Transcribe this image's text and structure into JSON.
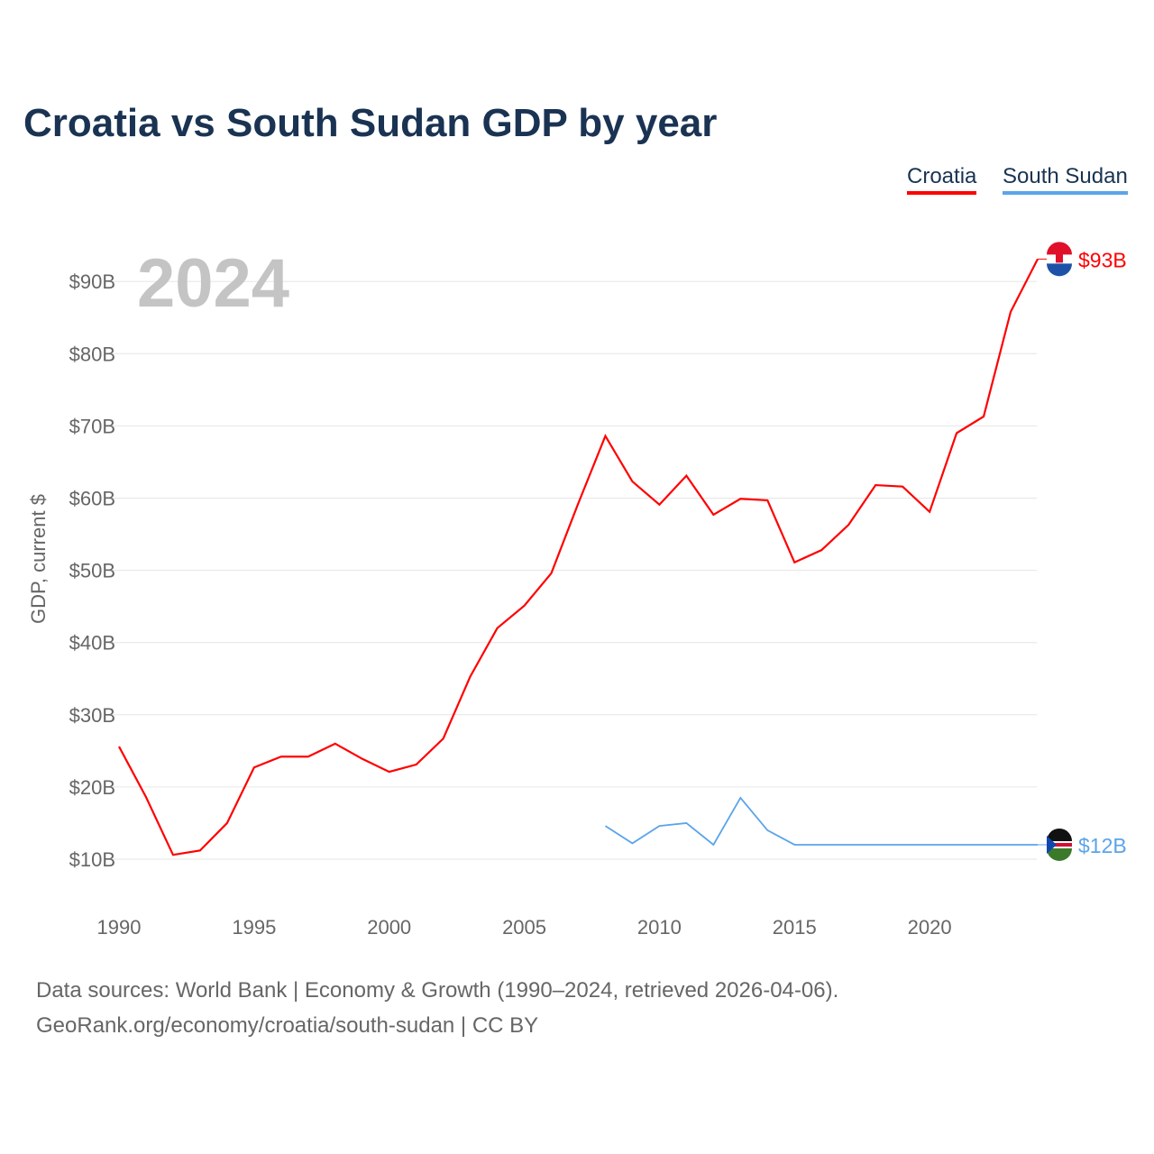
{
  "chart_data": {
    "type": "line",
    "title": "Croatia vs South Sudan GDP by year",
    "ylabel": "GDP, current $",
    "xlabel": "",
    "year_label": "2024",
    "ylim": [
      5,
      95
    ],
    "xlim": [
      1990,
      2024
    ],
    "yticks": [
      10,
      20,
      30,
      40,
      50,
      60,
      70,
      80,
      90
    ],
    "ytick_labels": [
      "$10B",
      "$20B",
      "$30B",
      "$40B",
      "$50B",
      "$60B",
      "$70B",
      "$80B",
      "$90B"
    ],
    "xticks": [
      1990,
      1995,
      2000,
      2005,
      2010,
      2015,
      2020
    ],
    "xtick_labels": [
      "1990",
      "1995",
      "2000",
      "2005",
      "2010",
      "2015",
      "2020"
    ],
    "grid": true,
    "legend_placement": "top-right",
    "series": [
      {
        "name": "Croatia",
        "color": "#ff0000",
        "end_label": "$93B",
        "flag": "croatia-flag",
        "x": [
          1990,
          1991,
          1992,
          1993,
          1994,
          1995,
          1996,
          1997,
          1998,
          1999,
          2000,
          2001,
          2002,
          2003,
          2004,
          2005,
          2006,
          2007,
          2008,
          2009,
          2010,
          2011,
          2012,
          2013,
          2014,
          2015,
          2016,
          2017,
          2018,
          2019,
          2020,
          2021,
          2022,
          2023,
          2024
        ],
        "values": [
          25.6,
          18.6,
          10.6,
          11.2,
          15.0,
          22.7,
          24.2,
          24.2,
          26.0,
          23.9,
          22.1,
          23.1,
          26.7,
          35.3,
          42.0,
          45.1,
          49.6,
          59.3,
          68.6,
          62.3,
          59.1,
          63.1,
          57.7,
          59.9,
          59.7,
          51.1,
          52.8,
          56.3,
          61.8,
          61.6,
          58.1,
          69.0,
          71.3,
          85.8,
          93.1
        ]
      },
      {
        "name": "South Sudan",
        "color": "#5ba4ea",
        "end_label": "$12B",
        "flag": "south-sudan-flag",
        "x": [
          2008,
          2009,
          2010,
          2011,
          2012,
          2013,
          2014,
          2015,
          2016,
          2017,
          2018,
          2019,
          2020,
          2021,
          2022,
          2023,
          2024
        ],
        "values": [
          14.6,
          12.2,
          14.6,
          15.0,
          12.0,
          18.5,
          14.0,
          12.0,
          12.0,
          12.0,
          12.0,
          12.0,
          12.0,
          12.0,
          12.0,
          12.0,
          12.0
        ]
      }
    ]
  },
  "footer": {
    "line1": "Data sources: World Bank | Economy & Growth (1990–2024, retrieved 2026-04-06).",
    "line2": "GeoRank.org/economy/croatia/south-sudan | CC BY"
  }
}
